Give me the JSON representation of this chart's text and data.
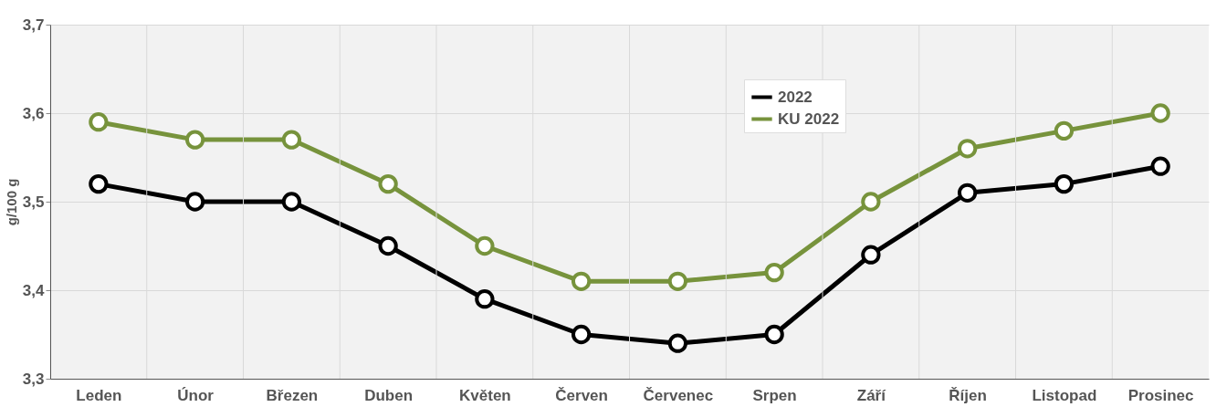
{
  "chart_data": {
    "type": "line",
    "ylabel": "g/100 g",
    "categories": [
      "Leden",
      "Únor",
      "Březen",
      "Duben",
      "Květen",
      "Červen",
      "Červenec",
      "Srpen",
      "Září",
      "Říjen",
      "Listopad",
      "Prosinec"
    ],
    "series": [
      {
        "name": "2022",
        "color": "#000000",
        "values": [
          3.52,
          3.5,
          3.5,
          3.45,
          3.39,
          3.35,
          3.34,
          3.35,
          3.44,
          3.51,
          3.52,
          3.54
        ]
      },
      {
        "name": "KU 2022",
        "color": "#77933c",
        "values": [
          3.59,
          3.57,
          3.57,
          3.52,
          3.45,
          3.41,
          3.41,
          3.42,
          3.5,
          3.56,
          3.58,
          3.6
        ]
      }
    ],
    "ylim": [
      3.3,
      3.7
    ],
    "yticks": [
      {
        "value": 3.3,
        "label": "3,3"
      },
      {
        "value": 3.4,
        "label": "3,4"
      },
      {
        "value": 3.5,
        "label": "3,5"
      },
      {
        "value": 3.6,
        "label": "3,6"
      },
      {
        "value": 3.7,
        "label": "3,7"
      }
    ],
    "grid": true,
    "legend": "top right",
    "marker": "circle",
    "line_style": "solid"
  }
}
